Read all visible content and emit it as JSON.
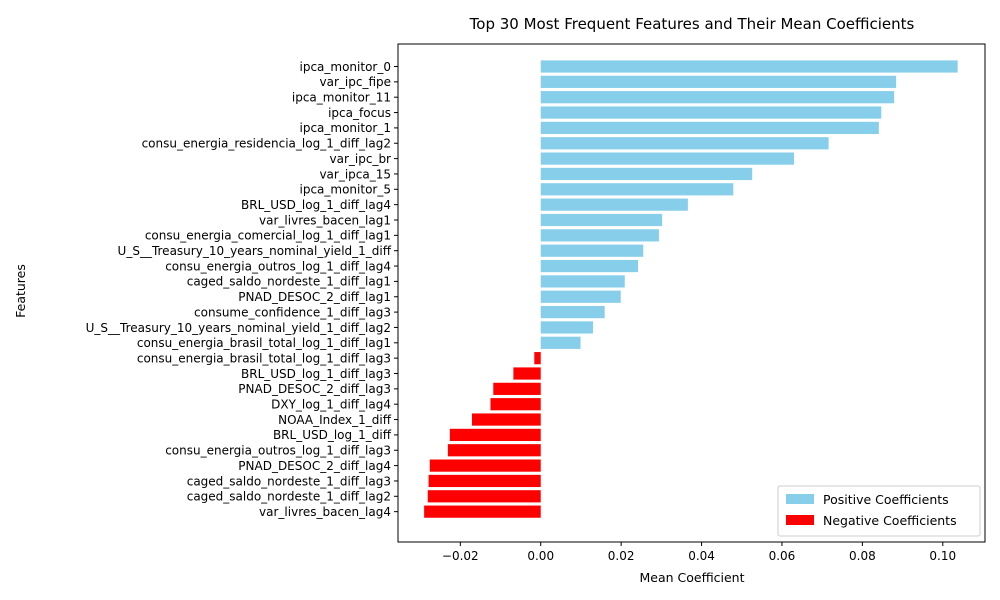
{
  "chart_data": {
    "type": "bar",
    "orientation": "horizontal",
    "title": "Top 30 Most Frequent Features and Their Mean Coefficients",
    "xlabel": "Mean Coefficient",
    "ylabel": "Features",
    "xlim": [
      -0.0355,
      0.1105
    ],
    "xticks": [
      -0.02,
      0.0,
      0.02,
      0.04,
      0.06,
      0.08,
      0.1
    ],
    "xtick_labels": [
      "−0.02",
      "0.00",
      "0.02",
      "0.04",
      "0.06",
      "0.08",
      "0.10"
    ],
    "grid": false,
    "legend_position": "bottom-right",
    "colors": {
      "positive": "#87CEEB",
      "negative": "#FF0000"
    },
    "series": [
      {
        "name": "Positive Coefficients",
        "color": "#87CEEB"
      },
      {
        "name": "Negative Coefficients",
        "color": "#FF0000"
      }
    ],
    "categories": [
      "ipca_monitor_0",
      "var_ipc_fipe",
      "ipca_monitor_11",
      "ipca_focus",
      "ipca_monitor_1",
      "consu_energia_residencia_log_1_diff_lag2",
      "var_ipc_br",
      "var_ipca_15",
      "ipca_monitor_5",
      "BRL_USD_log_1_diff_lag4",
      "var_livres_bacen_lag1",
      "consu_energia_comercial_log_1_diff_lag1",
      "U_S__Treasury_10_years_nominal_yield_1_diff",
      "consu_energia_outros_log_1_diff_lag4",
      "caged_saldo_nordeste_1_diff_lag1",
      "PNAD_DESOC_2_diff_lag1",
      "consume_confidence_1_diff_lag3",
      "U_S__Treasury_10_years_nominal_yield_1_diff_lag2",
      "consu_energia_brasil_total_log_1_diff_lag1",
      "consu_energia_brasil_total_log_1_diff_lag3",
      "BRL_USD_log_1_diff_lag3",
      "PNAD_DESOC_2_diff_lag3",
      "DXY_log_1_diff_lag4",
      "NOAA_Index_1_diff",
      "BRL_USD_log_1_diff",
      "consu_energia_outros_log_1_diff_lag3",
      "PNAD_DESOC_2_diff_lag4",
      "caged_saldo_nordeste_1_diff_lag3",
      "caged_saldo_nordeste_1_diff_lag2",
      "var_livres_bacen_lag4"
    ],
    "values": [
      0.1037,
      0.0884,
      0.0879,
      0.0847,
      0.0841,
      0.0716,
      0.063,
      0.0526,
      0.0479,
      0.0366,
      0.0302,
      0.0294,
      0.0255,
      0.0242,
      0.0209,
      0.0199,
      0.0159,
      0.013,
      0.0099,
      -0.0016,
      -0.0068,
      -0.0118,
      -0.0125,
      -0.0171,
      -0.0226,
      -0.0231,
      -0.0276,
      -0.0279,
      -0.0281,
      -0.029
    ]
  }
}
